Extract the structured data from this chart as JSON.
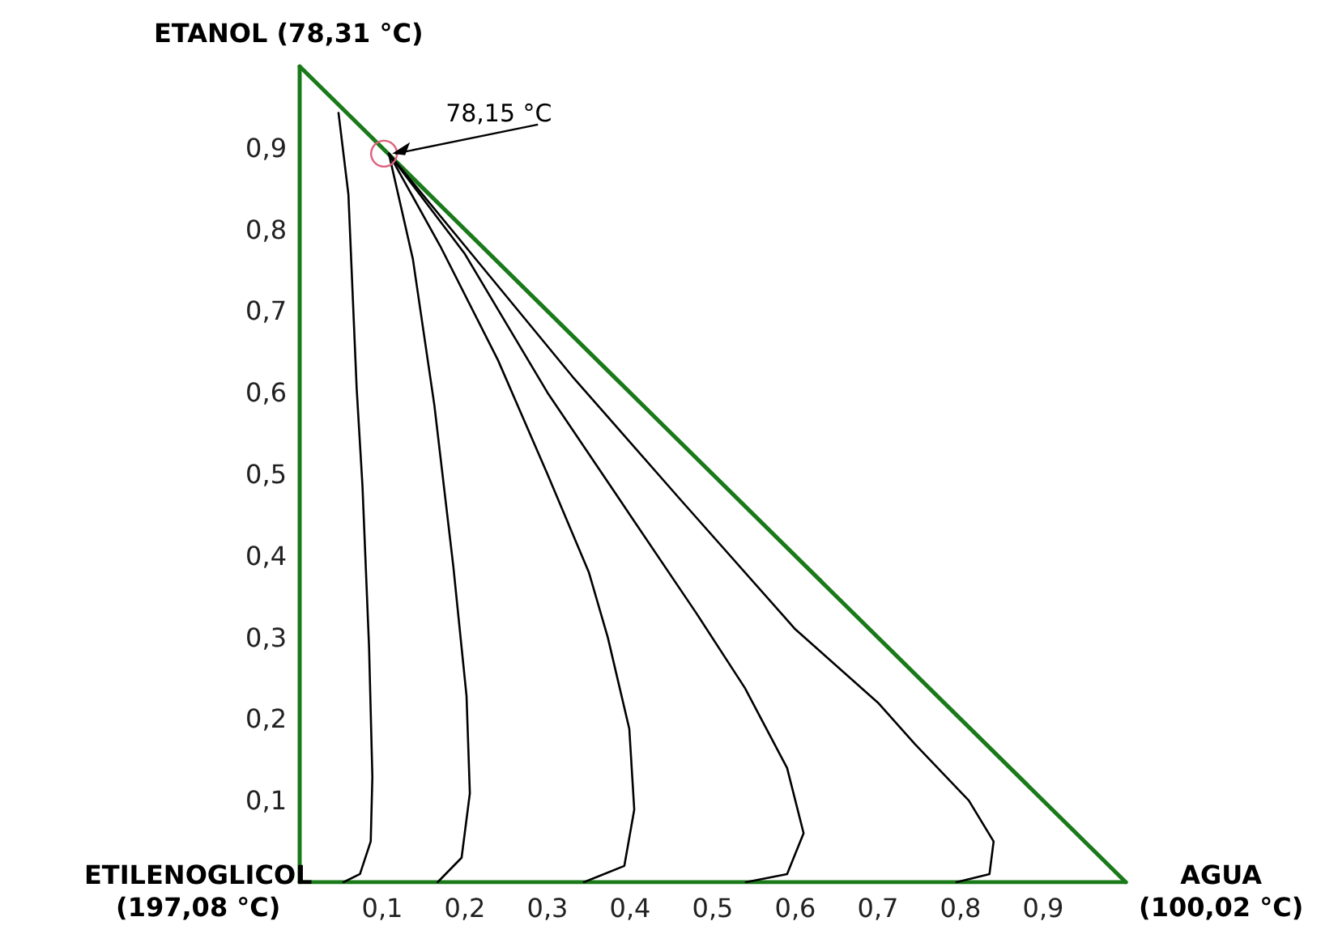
{
  "chart_data": {
    "type": "line",
    "xlim": [
      0,
      1
    ],
    "ylim": [
      0,
      1
    ],
    "xticks": [
      {
        "value": 0.1,
        "label": "0,1"
      },
      {
        "value": 0.2,
        "label": "0,2"
      },
      {
        "value": 0.3,
        "label": "0,3"
      },
      {
        "value": 0.4,
        "label": "0,4"
      },
      {
        "value": 0.5,
        "label": "0,5"
      },
      {
        "value": 0.6,
        "label": "0,6"
      },
      {
        "value": 0.7,
        "label": "0,7"
      },
      {
        "value": 0.8,
        "label": "0,8"
      },
      {
        "value": 0.9,
        "label": "0,9"
      }
    ],
    "yticks": [
      {
        "value": 0.1,
        "label": "0,1"
      },
      {
        "value": 0.2,
        "label": "0,2"
      },
      {
        "value": 0.3,
        "label": "0,3"
      },
      {
        "value": 0.4,
        "label": "0,4"
      },
      {
        "value": 0.5,
        "label": "0,5"
      },
      {
        "value": 0.6,
        "label": "0,6"
      },
      {
        "value": 0.7,
        "label": "0,7"
      },
      {
        "value": 0.8,
        "label": "0,8"
      },
      {
        "value": 0.9,
        "label": "0,9"
      }
    ],
    "marker": "none",
    "line_style": "solid",
    "series": [
      {
        "color": "#1a7a1a",
        "x": [
          0,
          0
        ],
        "values": [
          1,
          0
        ]
      },
      {
        "color": "#1a7a1a",
        "x": [
          0,
          1
        ],
        "values": [
          0,
          0
        ]
      },
      {
        "color": "#1a7a1a",
        "x": [
          0,
          1
        ],
        "values": [
          1,
          0
        ]
      },
      {
        "color": "#000000",
        "x": [
          0.047,
          0.059,
          0.069,
          0.076,
          0.084,
          0.088,
          0.086,
          0.073,
          0.053
        ],
        "values": [
          0.943,
          0.843,
          0.605,
          0.486,
          0.288,
          0.129,
          0.05,
          0.01,
          0
        ]
      },
      {
        "color": "#000000",
        "x": [
          0.108,
          0.137,
          0.163,
          0.186,
          0.202,
          0.206,
          0.196,
          0.167
        ],
        "values": [
          0.893,
          0.764,
          0.585,
          0.387,
          0.228,
          0.109,
          0.03,
          0
        ]
      },
      {
        "color": "#000000",
        "x": [
          0.108,
          0.17,
          0.24,
          0.3,
          0.35,
          0.373,
          0.399,
          0.405,
          0.393,
          0.344
        ],
        "values": [
          0.893,
          0.78,
          0.64,
          0.5,
          0.38,
          0.3,
          0.188,
          0.089,
          0.02,
          0
        ]
      },
      {
        "color": "#000000",
        "x": [
          0.108,
          0.2,
          0.3,
          0.4,
          0.48,
          0.539,
          0.59,
          0.61,
          0.59,
          0.54
        ],
        "values": [
          0.893,
          0.77,
          0.6,
          0.45,
          0.33,
          0.238,
          0.14,
          0.06,
          0.01,
          0
        ]
      },
      {
        "color": "#000000",
        "x": [
          0.108,
          0.2,
          0.33,
          0.46,
          0.6,
          0.7,
          0.745,
          0.81,
          0.84,
          0.835,
          0.795
        ],
        "values": [
          0.893,
          0.78,
          0.62,
          0.47,
          0.31,
          0.22,
          0.169,
          0.1,
          0.05,
          0.01,
          0
        ]
      }
    ],
    "annotations": [
      {
        "text": "78,15 °C",
        "x": 0.108,
        "y": 0.893
      },
      {
        "text": "ETANOL (78,31 °C)",
        "x": 0,
        "y": 1
      },
      {
        "text": "ETILENOGLICOL\n(197,08 °C)",
        "x": 0,
        "y": 0
      },
      {
        "text": "AGUA\n(100,02 °C)",
        "x": 1,
        "y": 0
      }
    ]
  }
}
